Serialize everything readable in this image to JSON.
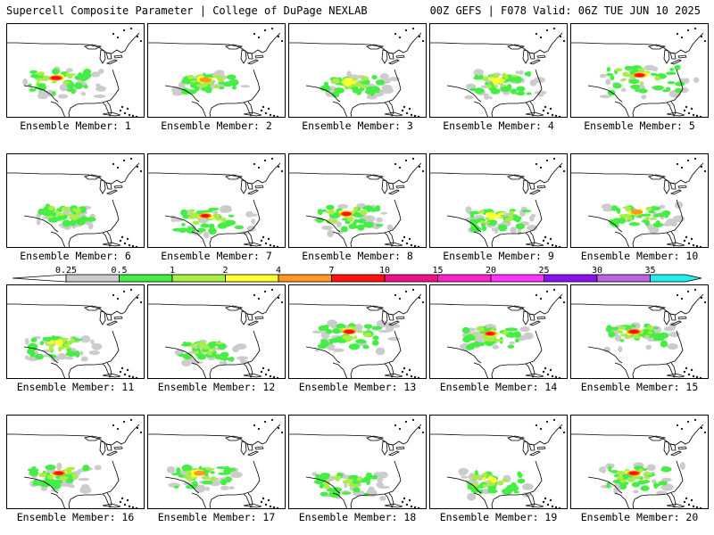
{
  "header": {
    "left_title": "Supercell Composite Parameter | College of DuPage NEXLAB",
    "right_title": "00Z GEFS | F078 Valid: 06Z TUE JUN 10 2025"
  },
  "panel_label_prefix": "Ensemble Member:",
  "members": [
    {
      "number": "1",
      "intensity": 2.0,
      "center": [
        0.36,
        0.58
      ],
      "spread": 1.1
    },
    {
      "number": "2",
      "intensity": 1.4,
      "center": [
        0.42,
        0.6
      ],
      "spread": 1.0
    },
    {
      "number": "3",
      "intensity": 1.2,
      "center": [
        0.45,
        0.62
      ],
      "spread": 1.0
    },
    {
      "number": "4",
      "intensity": 1.0,
      "center": [
        0.5,
        0.6
      ],
      "spread": 1.0
    },
    {
      "number": "5",
      "intensity": 1.8,
      "center": [
        0.5,
        0.55
      ],
      "spread": 1.3
    },
    {
      "number": "6",
      "intensity": 0.9,
      "center": [
        0.42,
        0.62
      ],
      "spread": 0.9
    },
    {
      "number": "7",
      "intensity": 1.6,
      "center": [
        0.42,
        0.66
      ],
      "spread": 1.1
    },
    {
      "number": "8",
      "intensity": 1.8,
      "center": [
        0.42,
        0.64
      ],
      "spread": 1.1
    },
    {
      "number": "9",
      "intensity": 1.2,
      "center": [
        0.48,
        0.66
      ],
      "spread": 1.0
    },
    {
      "number": "10",
      "intensity": 1.4,
      "center": [
        0.48,
        0.62
      ],
      "spread": 1.0
    },
    {
      "number": "11",
      "intensity": 1.0,
      "center": [
        0.36,
        0.62
      ],
      "spread": 1.0
    },
    {
      "number": "12",
      "intensity": 0.8,
      "center": [
        0.42,
        0.66
      ],
      "spread": 0.9
    },
    {
      "number": "13",
      "intensity": 2.0,
      "center": [
        0.44,
        0.5
      ],
      "spread": 1.1
    },
    {
      "number": "14",
      "intensity": 1.6,
      "center": [
        0.44,
        0.52
      ],
      "spread": 1.0
    },
    {
      "number": "15",
      "intensity": 2.0,
      "center": [
        0.46,
        0.5
      ],
      "spread": 1.0
    },
    {
      "number": "16",
      "intensity": 1.8,
      "center": [
        0.38,
        0.62
      ],
      "spread": 1.0
    },
    {
      "number": "17",
      "intensity": 1.4,
      "center": [
        0.38,
        0.62
      ],
      "spread": 1.0
    },
    {
      "number": "18",
      "intensity": 0.9,
      "center": [
        0.4,
        0.7
      ],
      "spread": 1.0
    },
    {
      "number": "19",
      "intensity": 1.0,
      "center": [
        0.44,
        0.68
      ],
      "spread": 1.0
    },
    {
      "number": "20",
      "intensity": 1.8,
      "center": [
        0.46,
        0.62
      ],
      "spread": 1.1
    }
  ],
  "colorbar": {
    "labels": [
      "0.25",
      "0.5",
      "1",
      "2",
      "4",
      "7",
      "10",
      "15",
      "20",
      "25",
      "30",
      "35"
    ],
    "colors": [
      "#cccccc",
      "#44ee44",
      "#a8ee44",
      "#ffff33",
      "#ff9922",
      "#ff1111",
      "#ee1188",
      "#ff22cc",
      "#ff33ff",
      "#8811ee",
      "#bb66dd",
      "#22eeee"
    ]
  }
}
